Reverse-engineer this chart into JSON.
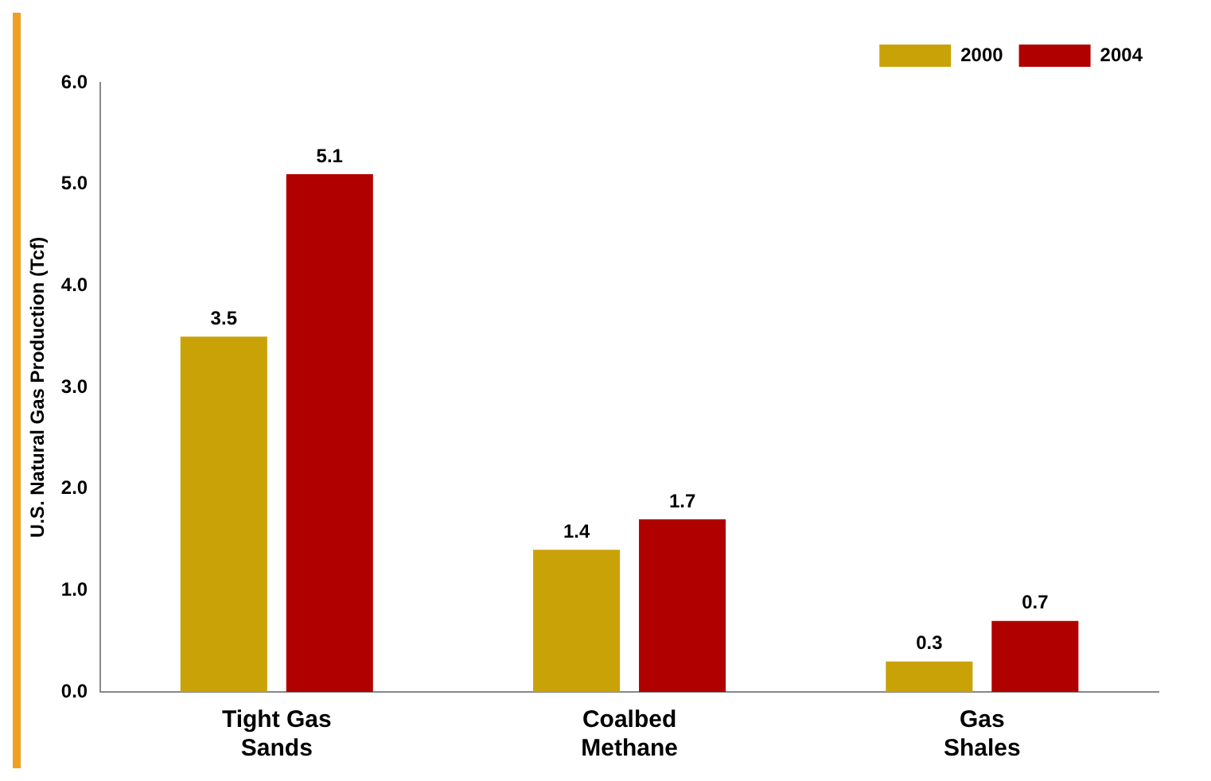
{
  "chart_data": {
    "type": "bar",
    "ylabel": "U.S. Natural Gas Production (Tcf)",
    "categories": [
      "Tight Gas Sands",
      "Coalbed Methane",
      "Gas Shales"
    ],
    "series": [
      {
        "name": "2000",
        "color": "#c9a208",
        "values": [
          3.5,
          1.4,
          0.3
        ]
      },
      {
        "name": "2004",
        "color": "#b00000",
        "values": [
          5.1,
          1.7,
          0.7
        ]
      }
    ],
    "ylim": [
      0,
      6
    ],
    "yticks": [
      {
        "value": 0,
        "label": "0.0"
      },
      {
        "value": 1,
        "label": "1.0"
      },
      {
        "value": 2,
        "label": "2.0"
      },
      {
        "value": 3,
        "label": "3.0"
      },
      {
        "value": 4,
        "label": "4.0"
      },
      {
        "value": 5,
        "label": "5.0"
      },
      {
        "value": 6,
        "label": "6.0"
      }
    ],
    "grid": false,
    "legend": "top right",
    "data_labels": true
  }
}
